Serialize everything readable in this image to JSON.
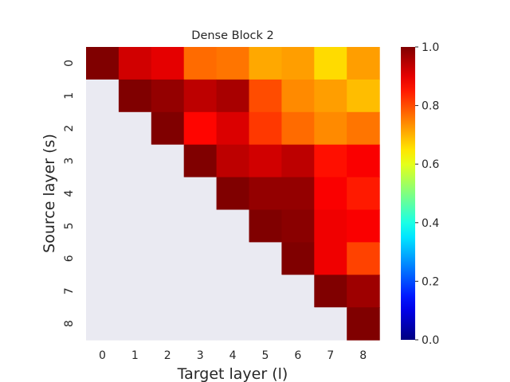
{
  "chart_data": {
    "type": "heatmap",
    "title": "Dense Block 2",
    "xlabel": "Target layer (l)",
    "ylabel": "Source layer (s)",
    "x_ticks": [
      "0",
      "1",
      "2",
      "3",
      "4",
      "5",
      "6",
      "7",
      "8"
    ],
    "y_ticks": [
      "0",
      "1",
      "2",
      "3",
      "4",
      "5",
      "6",
      "7",
      "8"
    ],
    "colormap": "jet",
    "vmin": 0.0,
    "vmax": 1.0,
    "colorbar_ticks": [
      "0.0",
      "0.2",
      "0.4",
      "0.6",
      "0.8",
      "1.0"
    ],
    "masked_color": "#eaeaf2",
    "values": [
      [
        1.0,
        0.92,
        0.9,
        0.77,
        0.76,
        0.71,
        0.72,
        0.66,
        0.72
      ],
      [
        null,
        1.0,
        0.98,
        0.94,
        0.96,
        0.8,
        0.74,
        0.72,
        0.69
      ],
      [
        null,
        null,
        1.0,
        0.87,
        0.91,
        0.82,
        0.77,
        0.74,
        0.76
      ],
      [
        null,
        null,
        null,
        1.0,
        0.94,
        0.92,
        0.94,
        0.86,
        0.88
      ],
      [
        null,
        null,
        null,
        null,
        1.0,
        0.98,
        0.98,
        0.88,
        0.85
      ],
      [
        null,
        null,
        null,
        null,
        null,
        1.0,
        0.99,
        0.89,
        0.88
      ],
      [
        null,
        null,
        null,
        null,
        null,
        null,
        1.0,
        0.89,
        0.81
      ],
      [
        null,
        null,
        null,
        null,
        null,
        null,
        null,
        1.0,
        0.97
      ],
      [
        null,
        null,
        null,
        null,
        null,
        null,
        null,
        null,
        1.0
      ]
    ]
  }
}
